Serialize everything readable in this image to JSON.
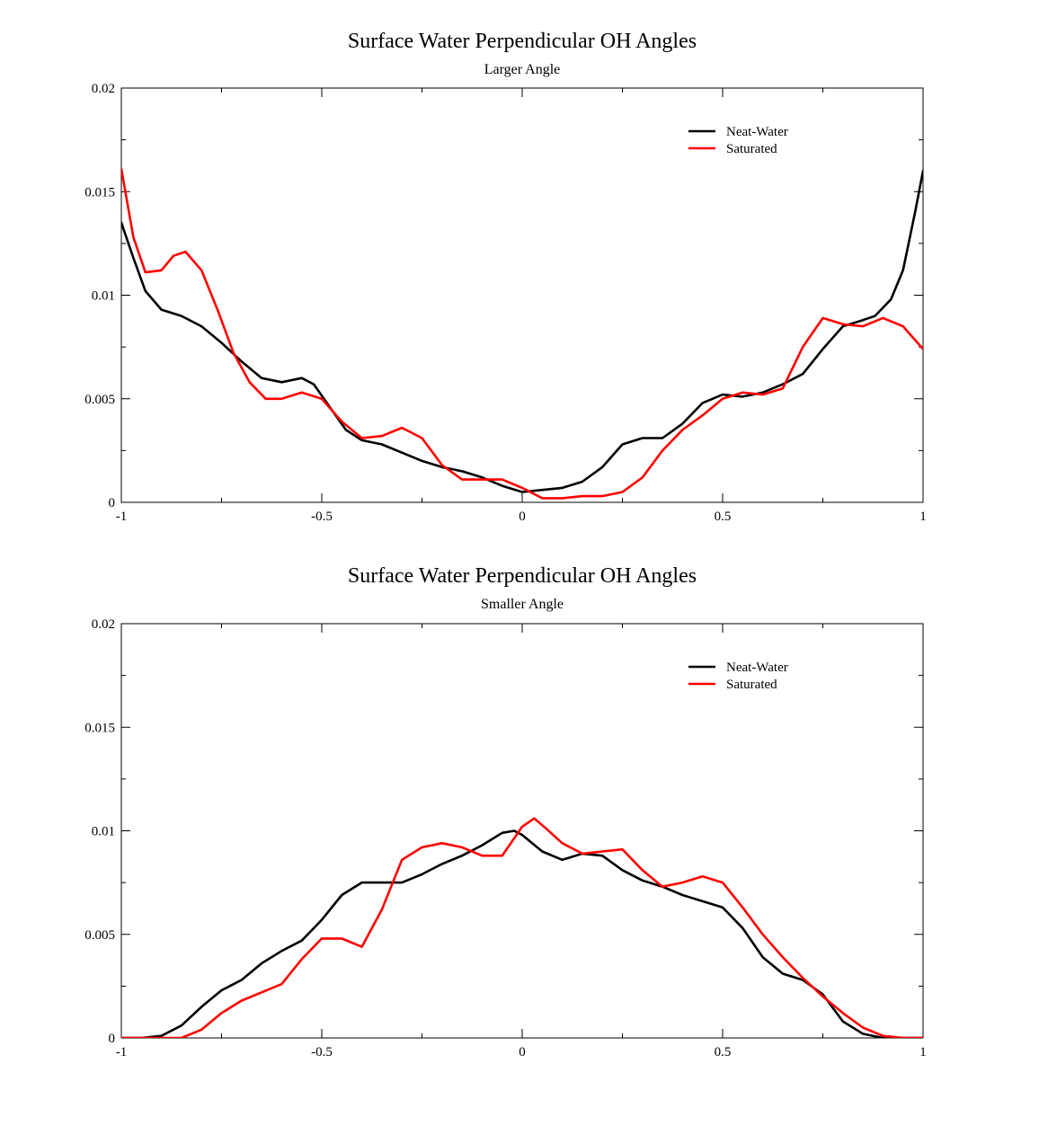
{
  "chart_data": [
    {
      "type": "line",
      "title": "Surface Water Perpendicular OH Angles",
      "subtitle": "Larger Angle",
      "xlabel": "",
      "ylabel": "",
      "xlim": [
        -1,
        1
      ],
      "ylim": [
        0,
        0.02
      ],
      "x_ticks": [
        -1,
        -0.5,
        0,
        0.5,
        1
      ],
      "x_tick_labels": [
        "-1",
        "-0.5",
        "0",
        "0.5",
        "1"
      ],
      "y_ticks": [
        0,
        0.005,
        0.01,
        0.015,
        0.02
      ],
      "y_tick_labels": [
        "0",
        "0.005",
        "0.01",
        "0.015",
        "0.02"
      ],
      "grid": false,
      "legend_position": "top-right",
      "series": [
        {
          "name": "Neat-Water",
          "color": "#000000",
          "points": [
            [
              -1,
              0.0135
            ],
            [
              -0.97,
              0.0118
            ],
            [
              -0.94,
              0.0102
            ],
            [
              -0.9,
              0.0093
            ],
            [
              -0.85,
              0.009
            ],
            [
              -0.8,
              0.0085
            ],
            [
              -0.75,
              0.0077
            ],
            [
              -0.7,
              0.0068
            ],
            [
              -0.65,
              0.006
            ],
            [
              -0.6,
              0.0058
            ],
            [
              -0.55,
              0.006
            ],
            [
              -0.52,
              0.0057
            ],
            [
              -0.48,
              0.0046
            ],
            [
              -0.44,
              0.0035
            ],
            [
              -0.4,
              0.003
            ],
            [
              -0.35,
              0.0028
            ],
            [
              -0.3,
              0.0024
            ],
            [
              -0.25,
              0.002
            ],
            [
              -0.2,
              0.0017
            ],
            [
              -0.15,
              0.0015
            ],
            [
              -0.1,
              0.0012
            ],
            [
              -0.05,
              0.0008
            ],
            [
              0,
              0.0005
            ],
            [
              0.05,
              0.0006
            ],
            [
              0.1,
              0.0007
            ],
            [
              0.15,
              0.001
            ],
            [
              0.2,
              0.0017
            ],
            [
              0.25,
              0.0028
            ],
            [
              0.3,
              0.0031
            ],
            [
              0.35,
              0.0031
            ],
            [
              0.4,
              0.0038
            ],
            [
              0.45,
              0.0048
            ],
            [
              0.5,
              0.0052
            ],
            [
              0.55,
              0.0051
            ],
            [
              0.6,
              0.0053
            ],
            [
              0.65,
              0.0057
            ],
            [
              0.7,
              0.0062
            ],
            [
              0.75,
              0.0074
            ],
            [
              0.8,
              0.0085
            ],
            [
              0.85,
              0.0088
            ],
            [
              0.88,
              0.009
            ],
            [
              0.92,
              0.0098
            ],
            [
              0.95,
              0.0112
            ],
            [
              0.98,
              0.014
            ],
            [
              1,
              0.016
            ]
          ]
        },
        {
          "name": "Saturated",
          "color": "#ff0000",
          "points": [
            [
              -1,
              0.0161
            ],
            [
              -0.97,
              0.0128
            ],
            [
              -0.94,
              0.0111
            ],
            [
              -0.9,
              0.0112
            ],
            [
              -0.87,
              0.0119
            ],
            [
              -0.84,
              0.0121
            ],
            [
              -0.8,
              0.0112
            ],
            [
              -0.76,
              0.0093
            ],
            [
              -0.72,
              0.0072
            ],
            [
              -0.68,
              0.0058
            ],
            [
              -0.64,
              0.005
            ],
            [
              -0.6,
              0.005
            ],
            [
              -0.55,
              0.0053
            ],
            [
              -0.5,
              0.005
            ],
            [
              -0.45,
              0.0039
            ],
            [
              -0.4,
              0.0031
            ],
            [
              -0.35,
              0.0032
            ],
            [
              -0.3,
              0.0036
            ],
            [
              -0.25,
              0.0031
            ],
            [
              -0.2,
              0.0018
            ],
            [
              -0.15,
              0.0011
            ],
            [
              -0.1,
              0.0011
            ],
            [
              -0.05,
              0.0011
            ],
            [
              0,
              0.0007
            ],
            [
              0.05,
              0.0002
            ],
            [
              0.1,
              0.0002
            ],
            [
              0.15,
              0.0003
            ],
            [
              0.2,
              0.0003
            ],
            [
              0.25,
              0.0005
            ],
            [
              0.3,
              0.0012
            ],
            [
              0.35,
              0.0025
            ],
            [
              0.4,
              0.0035
            ],
            [
              0.45,
              0.0042
            ],
            [
              0.5,
              0.005
            ],
            [
              0.55,
              0.0053
            ],
            [
              0.6,
              0.0052
            ],
            [
              0.65,
              0.0055
            ],
            [
              0.7,
              0.0075
            ],
            [
              0.75,
              0.0089
            ],
            [
              0.8,
              0.0086
            ],
            [
              0.85,
              0.0085
            ],
            [
              0.9,
              0.0089
            ],
            [
              0.95,
              0.0085
            ],
            [
              1,
              0.0074
            ]
          ]
        }
      ]
    },
    {
      "type": "line",
      "title": "Surface Water Perpendicular OH Angles",
      "subtitle": "Smaller Angle",
      "xlabel": "",
      "ylabel": "",
      "xlim": [
        -1,
        1
      ],
      "ylim": [
        0,
        0.02
      ],
      "x_ticks": [
        -1,
        -0.5,
        0,
        0.5,
        1
      ],
      "x_tick_labels": [
        "-1",
        "-0.5",
        "0",
        "0.5",
        "1"
      ],
      "y_ticks": [
        0,
        0.005,
        0.01,
        0.015,
        0.02
      ],
      "y_tick_labels": [
        "0",
        "0.005",
        "0.01",
        "0.015",
        "0.02"
      ],
      "grid": false,
      "legend_position": "top-right",
      "series": [
        {
          "name": "Neat-Water",
          "color": "#000000",
          "points": [
            [
              -1,
              0
            ],
            [
              -0.95,
              0
            ],
            [
              -0.9,
              0.0001
            ],
            [
              -0.85,
              0.0006
            ],
            [
              -0.8,
              0.0015
            ],
            [
              -0.75,
              0.0023
            ],
            [
              -0.7,
              0.0028
            ],
            [
              -0.65,
              0.0036
            ],
            [
              -0.6,
              0.0042
            ],
            [
              -0.55,
              0.0047
            ],
            [
              -0.5,
              0.0057
            ],
            [
              -0.45,
              0.0069
            ],
            [
              -0.4,
              0.0075
            ],
            [
              -0.35,
              0.0075
            ],
            [
              -0.3,
              0.0075
            ],
            [
              -0.25,
              0.0079
            ],
            [
              -0.2,
              0.0084
            ],
            [
              -0.15,
              0.0088
            ],
            [
              -0.1,
              0.0093
            ],
            [
              -0.05,
              0.0099
            ],
            [
              -0.02,
              0.01
            ],
            [
              0,
              0.0098
            ],
            [
              0.05,
              0.009
            ],
            [
              0.1,
              0.0086
            ],
            [
              0.15,
              0.0089
            ],
            [
              0.2,
              0.0088
            ],
            [
              0.25,
              0.0081
            ],
            [
              0.3,
              0.0076
            ],
            [
              0.35,
              0.0073
            ],
            [
              0.4,
              0.0069
            ],
            [
              0.45,
              0.0066
            ],
            [
              0.5,
              0.0063
            ],
            [
              0.55,
              0.0053
            ],
            [
              0.6,
              0.0039
            ],
            [
              0.65,
              0.0031
            ],
            [
              0.7,
              0.0028
            ],
            [
              0.75,
              0.0021
            ],
            [
              0.8,
              0.0008
            ],
            [
              0.85,
              0.0002
            ],
            [
              0.9,
              0
            ],
            [
              0.95,
              0
            ],
            [
              1,
              0
            ]
          ]
        },
        {
          "name": "Saturated",
          "color": "#ff0000",
          "points": [
            [
              -1,
              0
            ],
            [
              -0.9,
              0
            ],
            [
              -0.85,
              0
            ],
            [
              -0.8,
              0.0004
            ],
            [
              -0.75,
              0.0012
            ],
            [
              -0.7,
              0.0018
            ],
            [
              -0.65,
              0.0022
            ],
            [
              -0.6,
              0.0026
            ],
            [
              -0.55,
              0.0038
            ],
            [
              -0.5,
              0.0048
            ],
            [
              -0.45,
              0.0048
            ],
            [
              -0.4,
              0.0044
            ],
            [
              -0.35,
              0.0062
            ],
            [
              -0.3,
              0.0086
            ],
            [
              -0.25,
              0.0092
            ],
            [
              -0.2,
              0.0094
            ],
            [
              -0.15,
              0.0092
            ],
            [
              -0.1,
              0.0088
            ],
            [
              -0.05,
              0.0088
            ],
            [
              0,
              0.0102
            ],
            [
              0.03,
              0.0106
            ],
            [
              0.06,
              0.0101
            ],
            [
              0.1,
              0.0094
            ],
            [
              0.15,
              0.0089
            ],
            [
              0.2,
              0.009
            ],
            [
              0.25,
              0.0091
            ],
            [
              0.3,
              0.0081
            ],
            [
              0.35,
              0.0073
            ],
            [
              0.4,
              0.0075
            ],
            [
              0.45,
              0.0078
            ],
            [
              0.5,
              0.0075
            ],
            [
              0.55,
              0.0063
            ],
            [
              0.6,
              0.005
            ],
            [
              0.65,
              0.0039
            ],
            [
              0.7,
              0.0029
            ],
            [
              0.75,
              0.002
            ],
            [
              0.8,
              0.0012
            ],
            [
              0.85,
              0.0005
            ],
            [
              0.9,
              0.0001
            ],
            [
              0.95,
              0
            ],
            [
              1,
              0
            ]
          ]
        }
      ]
    }
  ]
}
